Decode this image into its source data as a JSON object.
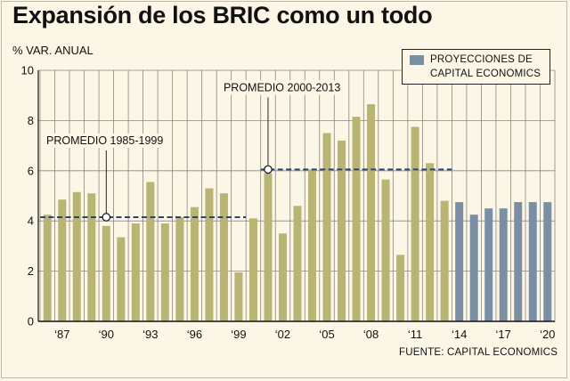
{
  "chart_data": {
    "type": "bar",
    "title": "Expansión de los BRIC como un todo",
    "ylabel": "% VAR. ANUAL",
    "ylim": [
      0,
      10
    ],
    "yticks": [
      0,
      2,
      4,
      6,
      8,
      10
    ],
    "x": [
      1986,
      1987,
      1988,
      1989,
      1990,
      1991,
      1992,
      1993,
      1994,
      1995,
      1996,
      1997,
      1998,
      1999,
      2000,
      2001,
      2002,
      2003,
      2004,
      2005,
      2006,
      2007,
      2008,
      2009,
      2010,
      2011,
      2012,
      2013,
      2014,
      2015,
      2016,
      2017,
      2018,
      2019,
      2020
    ],
    "values": [
      4.25,
      4.85,
      5.15,
      5.1,
      3.8,
      3.35,
      3.9,
      5.55,
      3.9,
      4.15,
      4.55,
      5.3,
      5.1,
      1.95,
      4.1,
      5.9,
      3.5,
      4.6,
      6.05,
      7.5,
      7.2,
      8.15,
      8.65,
      5.65,
      2.65,
      7.75,
      6.3,
      4.8,
      4.75,
      4.25,
      4.5,
      4.5,
      4.75,
      4.75,
      4.75
    ],
    "projection_from": 2014,
    "xtick_years": [
      1987,
      1990,
      1993,
      1996,
      1999,
      2002,
      2005,
      2008,
      2011,
      2014,
      2017,
      2020
    ],
    "xtick_labels": [
      "‘87",
      "‘90",
      "‘93",
      "‘96",
      "‘99",
      "‘02",
      "‘05",
      "‘08",
      "‘11",
      "‘14",
      "‘17",
      "‘20"
    ],
    "averages": [
      {
        "label": "PROMEDIO 1985-1999",
        "value": 4.15,
        "from": 1986,
        "to": 2000,
        "marker_year": 1990
      },
      {
        "label": "PROMEDIO 2000-2013",
        "value": 6.05,
        "from": 2001,
        "to": 2014,
        "marker_year": 2001
      }
    ],
    "legend": "PROYECCIONES DE CAPITAL ECONOMICS",
    "source": "FUENTE: CAPITAL ECONOMICS",
    "colors": {
      "history": "#b7b474",
      "projection": "#7a8fa3",
      "average_line": "#2e4470",
      "grid": "#8a887e"
    }
  }
}
